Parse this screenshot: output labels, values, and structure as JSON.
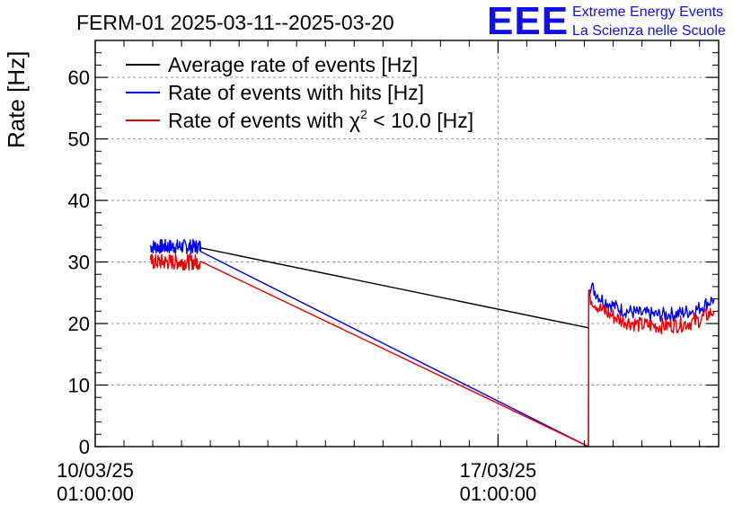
{
  "chart_data": {
    "type": "line",
    "title": "FERM-01 2025-03-11--2025-03-20",
    "ylabel": "Rate [Hz]",
    "xlabel": "",
    "ylim": [
      0,
      66
    ],
    "yticks": [
      0,
      10,
      20,
      30,
      40,
      50,
      60
    ],
    "xlim": [
      "2025-03-10T01:00:00",
      "2025-03-20T21:00:00"
    ],
    "xticks": [
      {
        "value": "2025-03-10T01:00:00",
        "line1": "10/03/25",
        "line2": "01:00:00"
      },
      {
        "value": "2025-03-17T01:00:00",
        "line1": "17/03/25",
        "line2": "01:00:00"
      }
    ],
    "grid": true,
    "legend_position": "top-left",
    "series": [
      {
        "name": "Average rate of events [Hz]",
        "color": "#000000",
        "segments": [
          [
            [
              "2025-03-11T21:00:00",
              32.3
            ],
            [
              "2025-03-18T14:40:00",
              19.3
            ]
          ]
        ]
      },
      {
        "name": "Rate of events with hits [Hz]",
        "color": "#0000ee",
        "segments": [
          [
            [
              "2025-03-11T00:00:00",
              32.5
            ],
            [
              "2025-03-11T21:00:00",
              32.5
            ],
            [
              "2025-03-18T14:40:00",
              0
            ]
          ],
          [
            [
              "2025-03-18T14:40:00",
              0
            ],
            [
              "2025-03-18T14:50:00",
              26.5
            ],
            [
              "2025-03-18T20:00:00",
              24.0
            ],
            [
              "2025-03-19T04:00:00",
              22.3
            ],
            [
              "2025-03-19T12:00:00",
              21.6
            ],
            [
              "2025-03-19T20:00:00",
              21.4
            ],
            [
              "2025-03-20T04:00:00",
              21.6
            ],
            [
              "2025-03-20T12:00:00",
              22.3
            ],
            [
              "2025-03-20T19:00:00",
              24.0
            ]
          ]
        ],
        "noise": 1.2
      },
      {
        "name": "Rate of events with χ² < 10.0 [Hz]",
        "color": "#ee0000",
        "segments": [
          [
            [
              "2025-03-11T00:00:00",
              30.0
            ],
            [
              "2025-03-11T21:00:00",
              30.0
            ],
            [
              "2025-03-18T14:40:00",
              0
            ]
          ],
          [
            [
              "2025-03-18T14:40:00",
              0
            ],
            [
              "2025-03-18T14:50:00",
              24.5
            ],
            [
              "2025-03-18T20:00:00",
              22.2
            ],
            [
              "2025-03-19T04:00:00",
              20.6
            ],
            [
              "2025-03-19T12:00:00",
              19.8
            ],
            [
              "2025-03-19T20:00:00",
              19.6
            ],
            [
              "2025-03-20T04:00:00",
              19.8
            ],
            [
              "2025-03-20T12:00:00",
              20.4
            ],
            [
              "2025-03-20T19:00:00",
              22.0
            ]
          ]
        ],
        "noise": 1.3
      }
    ],
    "legend": [
      {
        "label": "Average rate of events [Hz]",
        "color": "#000000"
      },
      {
        "label": "Rate of events with hits [Hz]",
        "color": "#0000ee"
      },
      {
        "label_prefix": "Rate of events with ",
        "label_symbol": "χ",
        "label_sup": "2",
        "label_suffix": " < 10.0 [Hz]",
        "color": "#ee0000"
      }
    ]
  },
  "logo": {
    "mark": "EEE",
    "line1": "Extreme Energy Events",
    "line2": "La Scienza nelle Scuole",
    "color": "#1010ee"
  }
}
